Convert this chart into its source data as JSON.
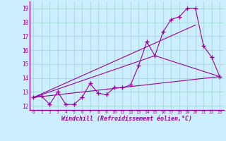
{
  "xlabel": "Windchill (Refroidissement éolien,°C)",
  "bg_color": "#cceeff",
  "grid_color": "#aadddd",
  "line_color": "#990099",
  "xlim": [
    -0.5,
    23.5
  ],
  "ylim": [
    11.7,
    19.5
  ],
  "xticks": [
    0,
    1,
    2,
    3,
    4,
    5,
    6,
    7,
    8,
    9,
    10,
    11,
    12,
    13,
    14,
    15,
    16,
    17,
    18,
    19,
    20,
    21,
    22,
    23
  ],
  "yticks": [
    12,
    13,
    14,
    15,
    16,
    17,
    18,
    19
  ],
  "line1_x": [
    0,
    1,
    2,
    3,
    4,
    5,
    6,
    7,
    8,
    9,
    10,
    11,
    12,
    13,
    14,
    15,
    16,
    17,
    18,
    19,
    20,
    21,
    22,
    23
  ],
  "line1_y": [
    12.6,
    12.7,
    12.1,
    13.0,
    12.1,
    12.1,
    12.6,
    13.6,
    12.9,
    12.8,
    13.3,
    13.3,
    13.5,
    14.9,
    16.6,
    15.6,
    17.3,
    18.2,
    18.4,
    19.0,
    19.0,
    16.3,
    15.5,
    14.1
  ],
  "line2_x": [
    0,
    23
  ],
  "line2_y": [
    12.6,
    14.1
  ],
  "line3_x": [
    0,
    20
  ],
  "line3_y": [
    12.6,
    17.8
  ],
  "line4_x": [
    0,
    15,
    23
  ],
  "line4_y": [
    12.6,
    15.6,
    14.1
  ]
}
